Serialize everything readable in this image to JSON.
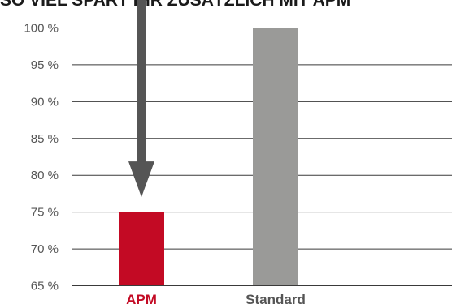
{
  "chart_data": {
    "type": "bar",
    "title": "SO VIEL SPART IHR ZUSÄTZLICH MIT APM",
    "categories": [
      "APM",
      "Standard"
    ],
    "values": [
      75,
      100
    ],
    "ylim": [
      65,
      100
    ],
    "y_ticks": [
      {
        "value": 65,
        "label": "65 %"
      },
      {
        "value": 70,
        "label": "70 %"
      },
      {
        "value": 75,
        "label": "75 %"
      },
      {
        "value": 80,
        "label": "80 %"
      },
      {
        "value": 85,
        "label": "85 %"
      },
      {
        "value": 90,
        "label": "90 %"
      },
      {
        "value": 95,
        "label": "95 %"
      },
      {
        "value": 100,
        "label": "100 %"
      }
    ],
    "grid": true,
    "bar_colors": [
      "#c30a24",
      "#9a9a98"
    ],
    "label_colors": [
      "#c30a24",
      "#555555"
    ],
    "arrow_color": "#555555",
    "annotation": {
      "type": "arrow",
      "target_category": "APM",
      "from_value": 100,
      "to_value": 75
    }
  }
}
